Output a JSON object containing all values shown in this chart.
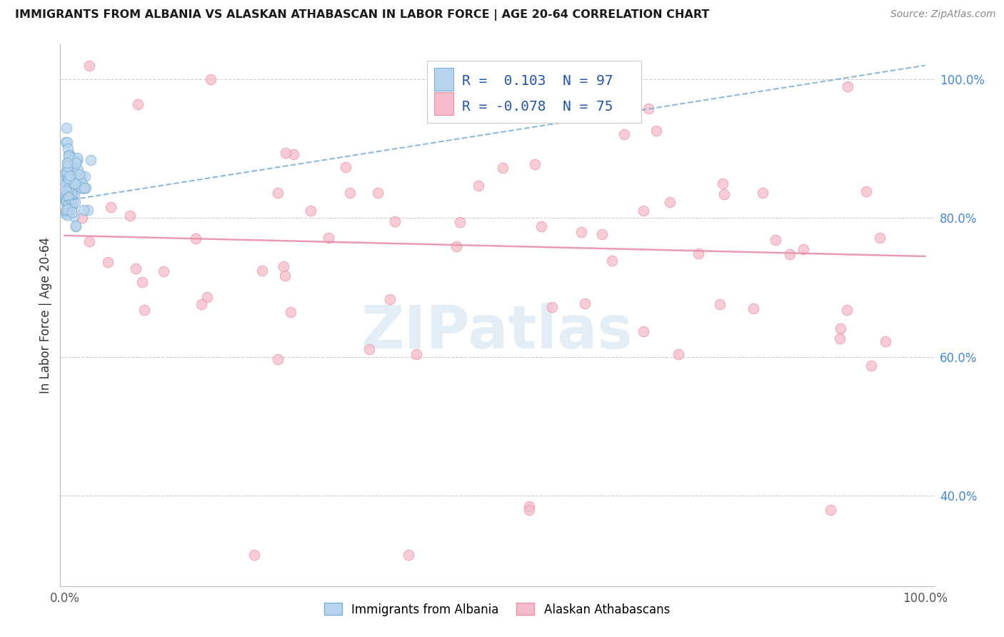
{
  "title": "IMMIGRANTS FROM ALBANIA VS ALASKAN ATHABASCAN IN LABOR FORCE | AGE 20-64 CORRELATION CHART",
  "source": "Source: ZipAtlas.com",
  "ylabel": "In Labor Force | Age 20-64",
  "albania_R": "0.103",
  "albania_N": "97",
  "athabascan_R": "-0.078",
  "athabascan_N": "75",
  "albania_fill": "#b8d4ed",
  "albania_edge": "#7aadd4",
  "athabascan_fill": "#f5bbc8",
  "athabascan_edge": "#e890a8",
  "albania_line_color": "#7aadd4",
  "athabascan_line_color": "#e890a8",
  "legend_R_color": "#2255aa",
  "legend_N_color": "#2255aa",
  "right_tick_color": "#4488cc",
  "watermark_color": "#ccdff0",
  "y_ticks": [
    0.4,
    0.6,
    0.8,
    1.0
  ],
  "y_tick_labels": [
    "40.0%",
    "60.0%",
    "80.0%",
    "100.0%"
  ],
  "xlim": [
    0.0,
    1.0
  ],
  "ylim": [
    0.27,
    1.05
  ],
  "albania_trend": [
    0.0,
    1.0,
    0.825,
    1.02
  ],
  "athabascan_trend": [
    0.0,
    1.0,
    0.775,
    0.745
  ]
}
